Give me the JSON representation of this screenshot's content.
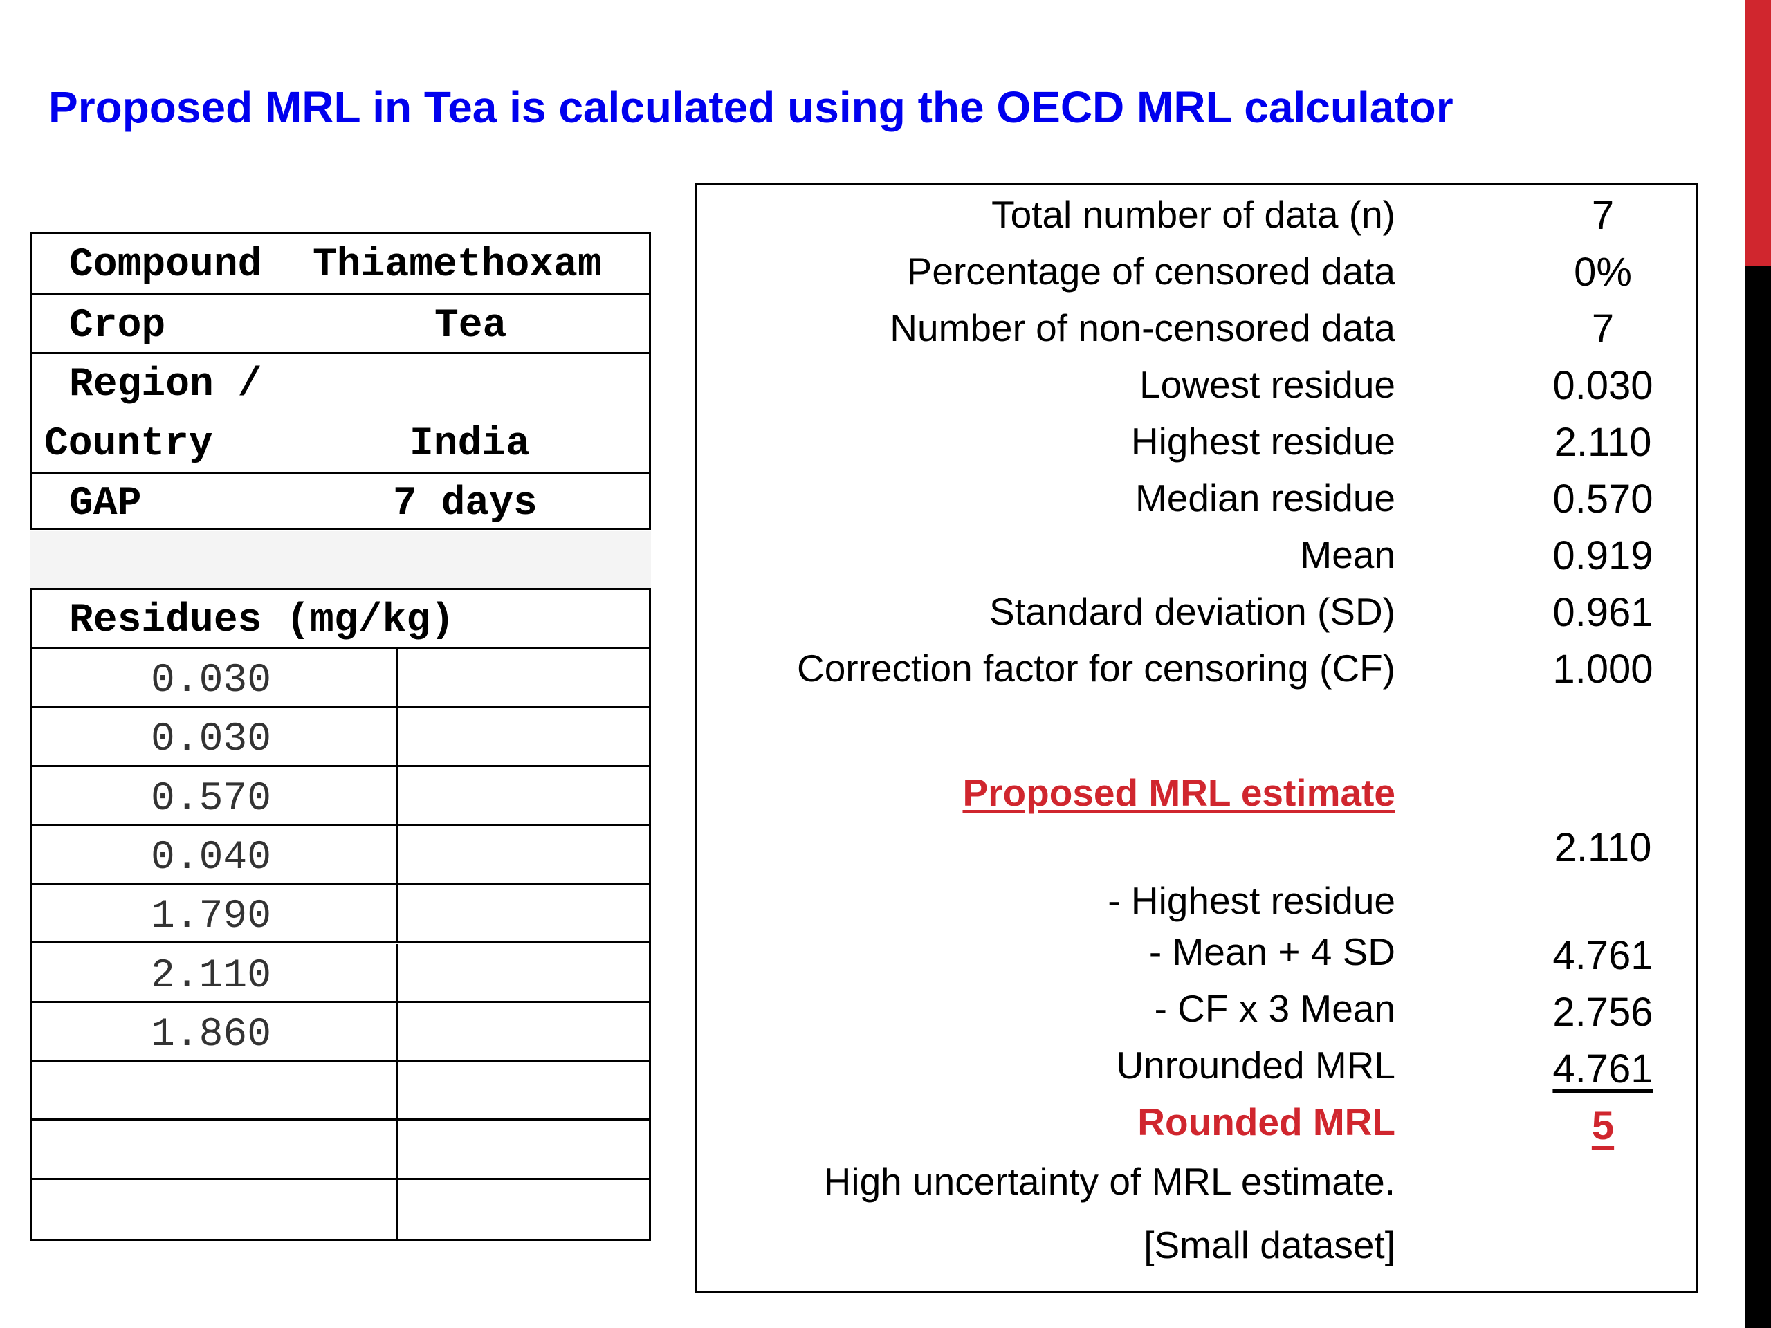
{
  "title": "Proposed MRL in Tea is calculated using the OECD MRL calculator",
  "info": {
    "compound_label": "Compound",
    "compound_value": "Thiamethoxam",
    "crop_label": "Crop",
    "crop_value": "Tea",
    "region_label_1": "Region /",
    "region_label_2": "Country",
    "region_value": "India",
    "gap_label": "GAP",
    "gap_value": "7 days"
  },
  "residues": {
    "header": "Residues (mg/kg)",
    "values": [
      "0.030",
      "0.030",
      "0.570",
      "0.040",
      "1.790",
      "2.110",
      "1.860",
      "",
      "",
      ""
    ]
  },
  "stats": {
    "rows": [
      {
        "label": "Total number of data (n)",
        "value": "7"
      },
      {
        "label": "Percentage of censored data",
        "value": "0%"
      },
      {
        "label": "Number of non-censored data",
        "value": "7"
      },
      {
        "label": "Lowest residue",
        "value": "0.030"
      },
      {
        "label": "Highest residue",
        "value": "2.110"
      },
      {
        "label": "Median residue",
        "value": "0.570"
      },
      {
        "label": "Mean",
        "value": "0.919"
      },
      {
        "label": "Standard deviation (SD)",
        "value": "0.961"
      },
      {
        "label": "Correction factor for censoring (CF)",
        "value": "1.000"
      }
    ],
    "estimate_heading": "Proposed MRL estimate",
    "estimate_rows": [
      {
        "label": "- Highest residue",
        "value": "2.110"
      },
      {
        "label": "- Mean + 4 SD",
        "value": "4.761"
      },
      {
        "label": "- CF x 3 Mean",
        "value": "2.756"
      },
      {
        "label": "Unrounded MRL",
        "value": "4.761"
      },
      {
        "label": "Rounded MRL",
        "value": "5"
      }
    ],
    "note_1": "High uncertainty of MRL estimate.",
    "note_2": "[Small dataset]"
  }
}
